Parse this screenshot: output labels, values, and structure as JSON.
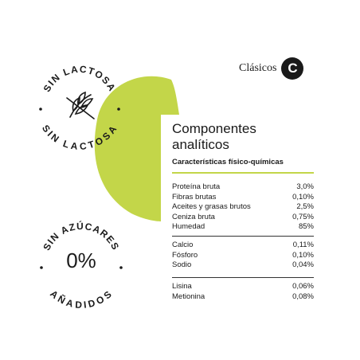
{
  "colors": {
    "accent": "#c3d649",
    "text": "#1a1a1a",
    "background": "#ffffff"
  },
  "brand": {
    "label": "Clásicos",
    "letter": "C"
  },
  "badges": {
    "lactose": {
      "top_text": "SIN LACTOSA",
      "bottom_text": "SIN LACTOSA",
      "icon": "crossed-wheat-icon"
    },
    "sugar": {
      "top_text": "SIN AZÚCARES",
      "bottom_text": "AÑADIDOS",
      "center": "0%"
    }
  },
  "panel": {
    "title_line1": "Componentes",
    "title_line2": "analíticos",
    "subtitle": "Características físico-químicas",
    "group1": [
      {
        "label": "Proteína bruta",
        "value": "3,0%"
      },
      {
        "label": "Fibras brutas",
        "value": "0,10%"
      },
      {
        "label": "Aceites y grasas brutos",
        "value": "2,5%"
      },
      {
        "label": "Ceniza bruta",
        "value": "0,75%"
      },
      {
        "label": "Humedad",
        "value": "85%"
      }
    ],
    "group2": [
      {
        "label": "Calcio",
        "value": "0,11%"
      },
      {
        "label": "Fósforo",
        "value": "0,10%"
      },
      {
        "label": "Sodio",
        "value": "0,04%"
      }
    ],
    "group3": [
      {
        "label": "Lisina",
        "value": "0,06%"
      },
      {
        "label": "Metionina",
        "value": "0,08%"
      }
    ]
  }
}
